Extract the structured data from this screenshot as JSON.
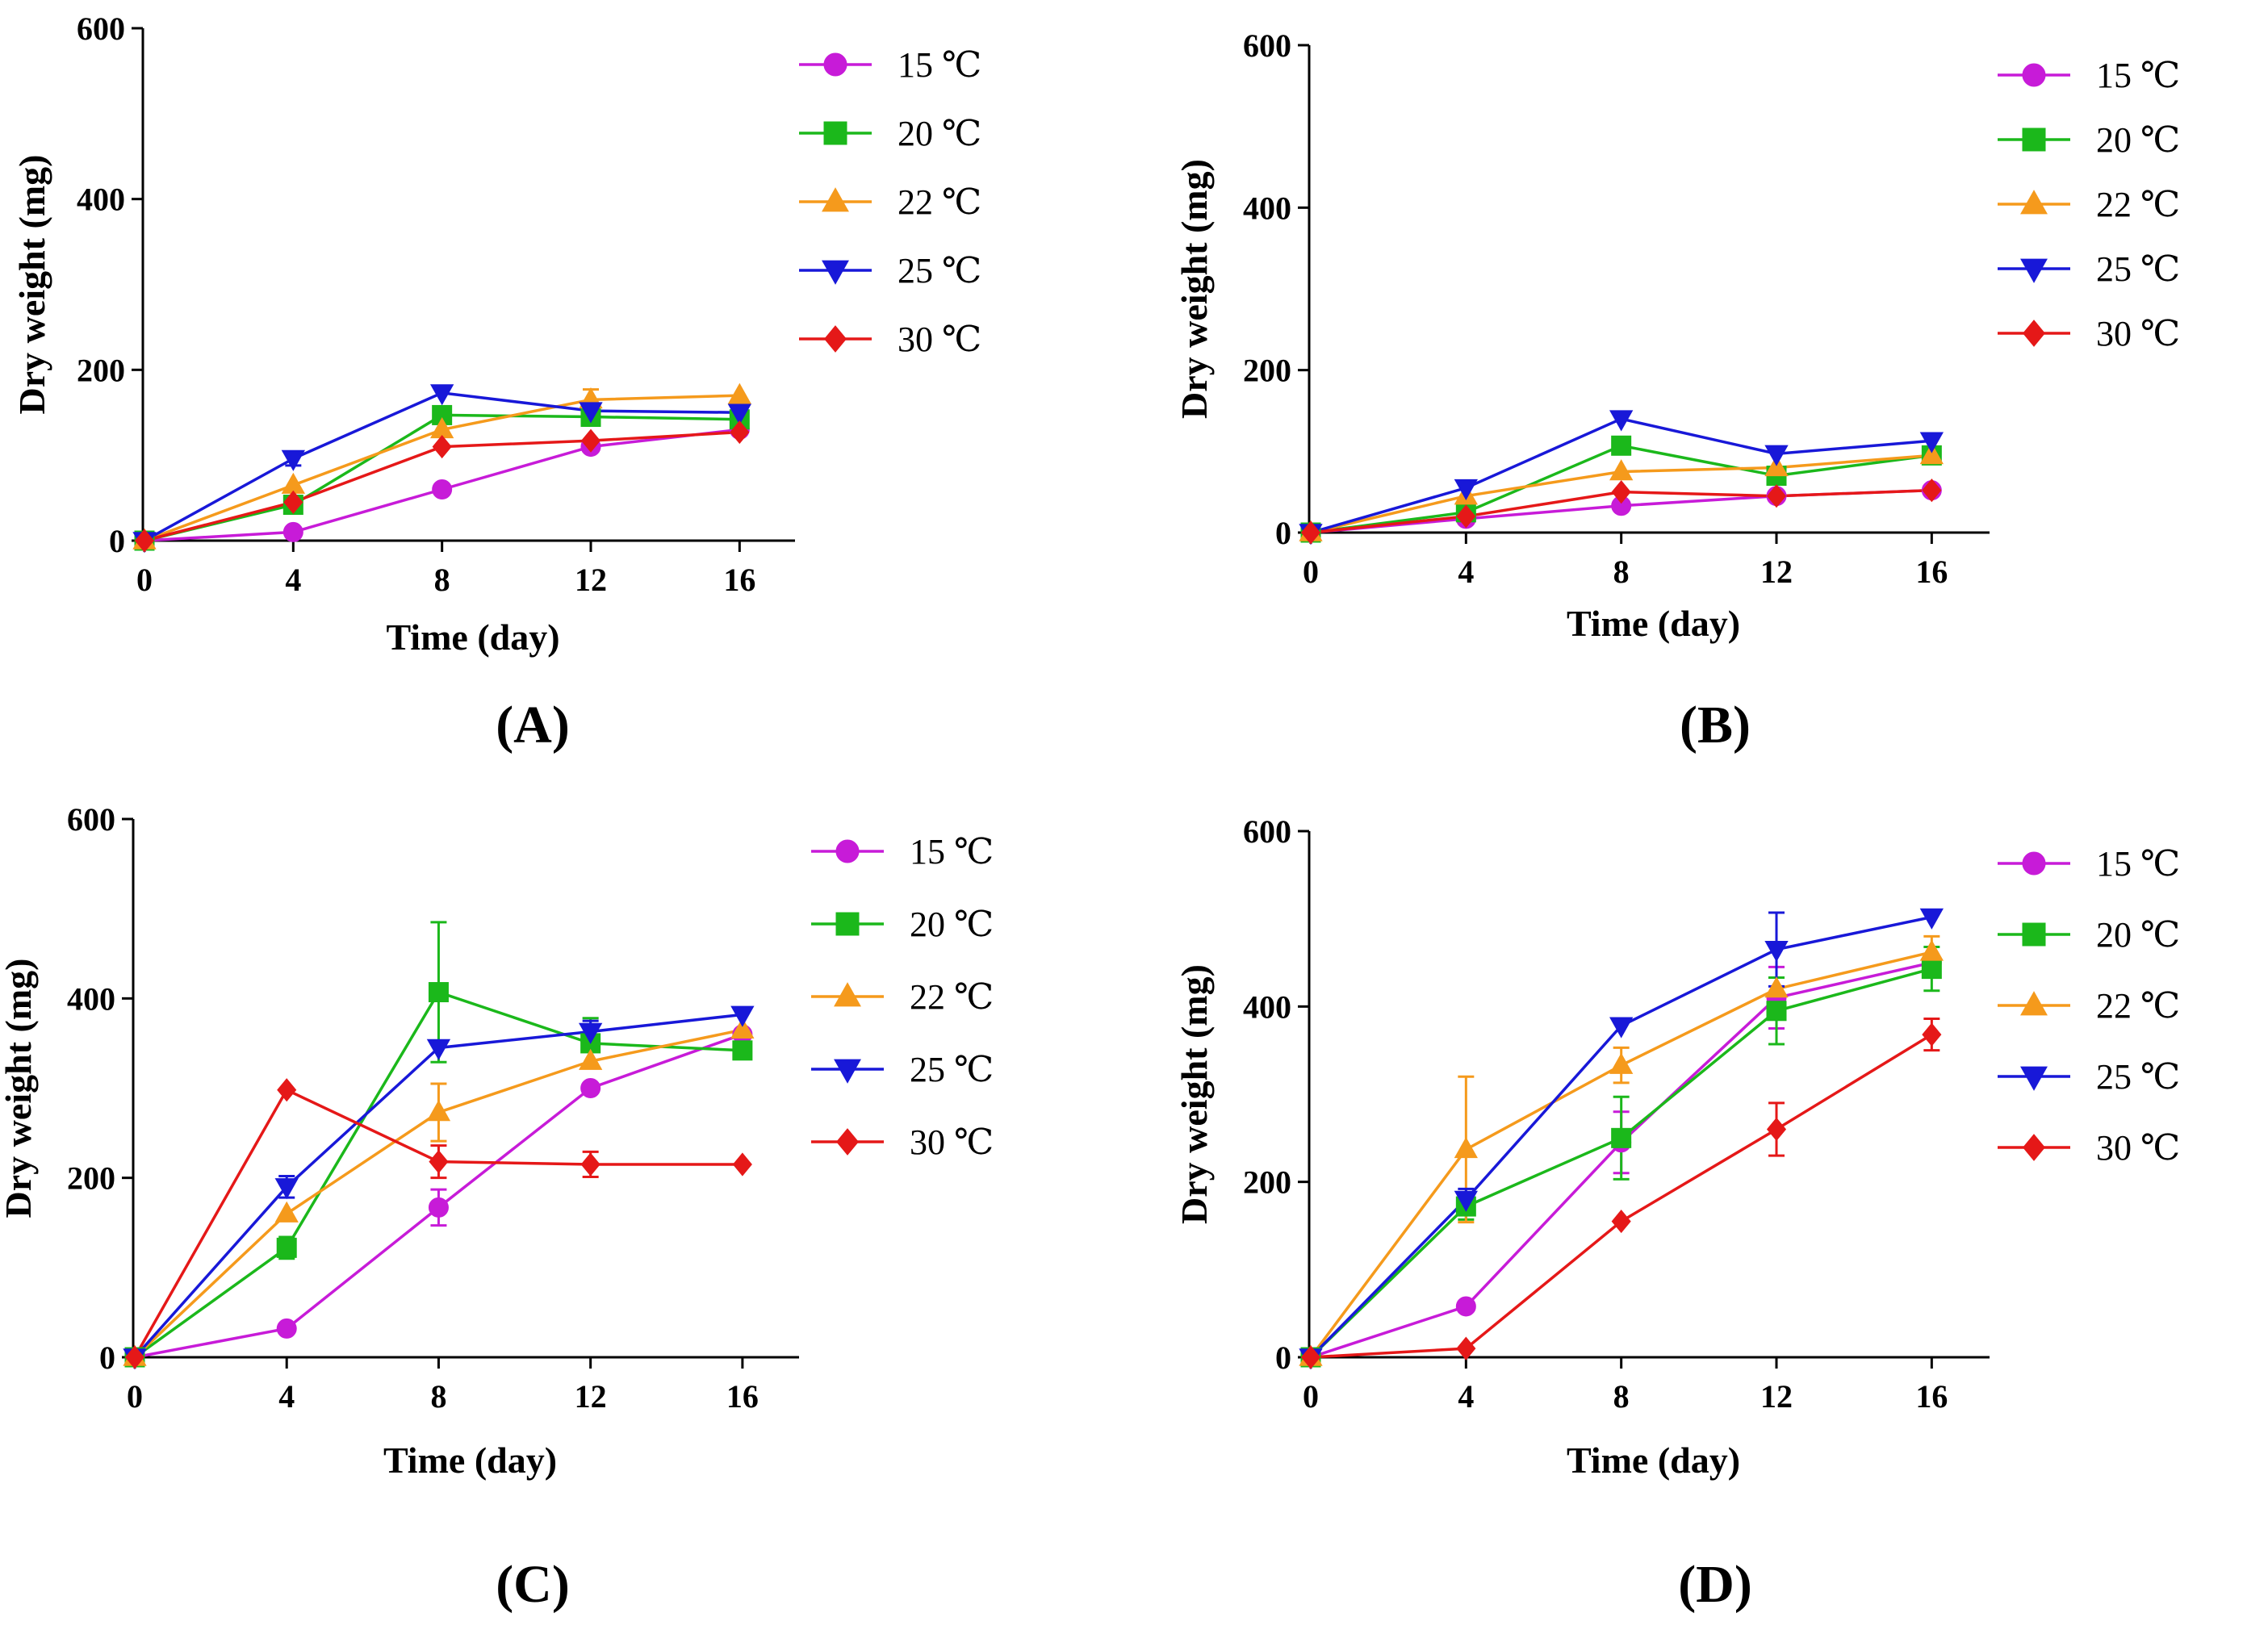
{
  "figure": {
    "degree_glyph": "℃",
    "legend_labels": [
      "15 ℃",
      "20 ℃",
      "22 ℃",
      "25 ℃",
      "30 ℃"
    ]
  },
  "series_styles": [
    {
      "name": "15 ℃",
      "color": "#C71BD8",
      "marker": "circle"
    },
    {
      "name": "20 ℃",
      "color": "#1BB81B",
      "marker": "square"
    },
    {
      "name": "22 ℃",
      "color": "#F59A1C",
      "marker": "triangle-up"
    },
    {
      "name": "25 ℃",
      "color": "#1818D8",
      "marker": "triangle-down"
    },
    {
      "name": "30 ℃",
      "color": "#E51818",
      "marker": "diamond"
    }
  ],
  "chart_data": [
    {
      "panel": "(A)",
      "type": "line",
      "title": "",
      "xlabel": "Time (day)",
      "ylabel": "Dry weight (mg)",
      "x": [
        0,
        4,
        8,
        12,
        16
      ],
      "xticks": [
        0,
        4,
        8,
        12,
        16
      ],
      "ylim": [
        0,
        600
      ],
      "yticks": [
        0,
        200,
        400,
        600
      ],
      "legend_position": "right",
      "series": [
        {
          "name": "15 ℃",
          "values": [
            0,
            10,
            60,
            110,
            130
          ],
          "errors": [
            0,
            0,
            0,
            0,
            0
          ]
        },
        {
          "name": "20 ℃",
          "values": [
            0,
            42,
            147,
            145,
            142
          ],
          "errors": [
            0,
            0,
            0,
            0,
            0
          ]
        },
        {
          "name": "22 ℃",
          "values": [
            0,
            65,
            130,
            165,
            170
          ],
          "errors": [
            0,
            0,
            0,
            12,
            0
          ]
        },
        {
          "name": "25 ℃",
          "values": [
            0,
            96,
            173,
            152,
            150
          ],
          "errors": [
            0,
            8,
            0,
            0,
            0
          ]
        },
        {
          "name": "30 ℃",
          "values": [
            0,
            45,
            110,
            117,
            127
          ],
          "errors": [
            0,
            0,
            0,
            0,
            0
          ]
        }
      ]
    },
    {
      "panel": "(B)",
      "type": "line",
      "title": "",
      "xlabel": "Time (day)",
      "ylabel": "Dry weight (mg)",
      "x": [
        0,
        4,
        8,
        12,
        16
      ],
      "xticks": [
        0,
        4,
        8,
        12,
        16
      ],
      "ylim": [
        0,
        600
      ],
      "yticks": [
        0,
        200,
        400,
        600
      ],
      "legend_position": "right",
      "series": [
        {
          "name": "15 ℃",
          "values": [
            0,
            17,
            33,
            45,
            52
          ],
          "errors": [
            0,
            0,
            0,
            0,
            0
          ]
        },
        {
          "name": "20 ℃",
          "values": [
            0,
            25,
            107,
            70,
            95
          ],
          "errors": [
            0,
            0,
            0,
            0,
            0
          ]
        },
        {
          "name": "22 ℃",
          "values": [
            0,
            45,
            75,
            80,
            95
          ],
          "errors": [
            0,
            0,
            0,
            0,
            0
          ]
        },
        {
          "name": "25 ℃",
          "values": [
            0,
            55,
            140,
            97,
            113
          ],
          "errors": [
            0,
            0,
            0,
            0,
            0
          ]
        },
        {
          "name": "30 ℃",
          "values": [
            0,
            20,
            50,
            45,
            52
          ],
          "errors": [
            0,
            0,
            0,
            0,
            0
          ]
        }
      ]
    },
    {
      "panel": "(C)",
      "type": "line",
      "title": "",
      "xlabel": "Time (day)",
      "ylabel": "Dry weight (mg)",
      "x": [
        0,
        4,
        8,
        12,
        16
      ],
      "xticks": [
        0,
        4,
        8,
        12,
        16
      ],
      "ylim": [
        0,
        600
      ],
      "yticks": [
        0,
        200,
        400,
        600
      ],
      "legend_position": "right",
      "series": [
        {
          "name": "15 ℃",
          "values": [
            0,
            32,
            167,
            300,
            360
          ],
          "errors": [
            0,
            0,
            20,
            0,
            0
          ]
        },
        {
          "name": "20 ℃",
          "values": [
            0,
            122,
            407,
            350,
            342
          ],
          "errors": [
            0,
            12,
            78,
            28,
            0
          ]
        },
        {
          "name": "22 ℃",
          "values": [
            0,
            160,
            273,
            330,
            365
          ],
          "errors": [
            0,
            0,
            32,
            0,
            0
          ]
        },
        {
          "name": "25 ℃",
          "values": [
            0,
            190,
            345,
            363,
            382
          ],
          "errors": [
            0,
            12,
            0,
            12,
            0
          ]
        },
        {
          "name": "30 ℃",
          "values": [
            0,
            298,
            218,
            215,
            215
          ],
          "errors": [
            0,
            0,
            18,
            14,
            0
          ]
        }
      ]
    },
    {
      "panel": "(D)",
      "type": "line",
      "title": "",
      "xlabel": "Time (day)",
      "ylabel": "Dry weight (mg)",
      "x": [
        0,
        4,
        8,
        12,
        16
      ],
      "xticks": [
        0,
        4,
        8,
        12,
        16
      ],
      "ylim": [
        0,
        600
      ],
      "yticks": [
        0,
        200,
        400,
        600
      ],
      "legend_position": "right",
      "series": [
        {
          "name": "15 ℃",
          "values": [
            0,
            58,
            245,
            410,
            450
          ],
          "errors": [
            0,
            0,
            35,
            35,
            0
          ]
        },
        {
          "name": "20 ℃",
          "values": [
            0,
            172,
            250,
            395,
            443
          ],
          "errors": [
            0,
            15,
            47,
            38,
            25
          ]
        },
        {
          "name": "22 ℃",
          "values": [
            0,
            237,
            333,
            420,
            462
          ],
          "errors": [
            0,
            83,
            20,
            0,
            18
          ]
        },
        {
          "name": "25 ℃",
          "values": [
            0,
            180,
            378,
            465,
            502
          ],
          "errors": [
            0,
            12,
            0,
            42,
            0
          ]
        },
        {
          "name": "30 ℃",
          "values": [
            0,
            10,
            155,
            260,
            368
          ],
          "errors": [
            0,
            0,
            0,
            30,
            18
          ]
        }
      ]
    }
  ]
}
